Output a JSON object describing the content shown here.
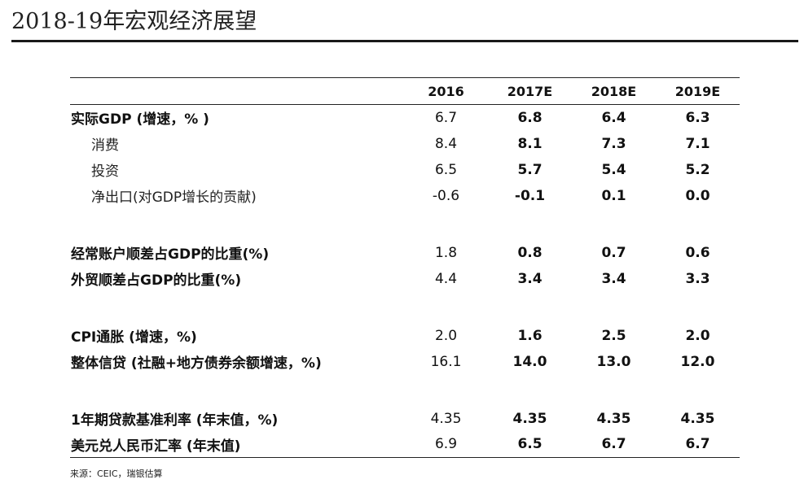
{
  "page": {
    "title": "2018-19年宏观经济展望",
    "source": "来源：CEIC，瑞银估算"
  },
  "table": {
    "headers": [
      "",
      "2016",
      "2017E",
      "2018E",
      "2019E"
    ],
    "rows": [
      {
        "label": "实际GDP (增速，% )",
        "values": [
          "6.7",
          "6.8",
          "6.4",
          "6.3"
        ]
      },
      {
        "label": "消费",
        "values": [
          "8.4",
          "8.1",
          "7.3",
          "7.1"
        ]
      },
      {
        "label": "投资",
        "values": [
          "6.5",
          "5.7",
          "5.4",
          "5.2"
        ]
      },
      {
        "label": "净出口(对GDP增长的贡献)",
        "values": [
          "-0.6",
          "-0.1",
          "0.1",
          "0.0"
        ]
      },
      {
        "label": "经常账户顺差占GDP的比重(%)",
        "values": [
          "1.8",
          "0.8",
          "0.7",
          "0.6"
        ]
      },
      {
        "label": "外贸顺差占GDP的比重(%)",
        "values": [
          "4.4",
          "3.4",
          "3.4",
          "3.3"
        ]
      },
      {
        "label": "CPI通胀 (增速，%)",
        "values": [
          "2.0",
          "1.6",
          "2.5",
          "2.0"
        ]
      },
      {
        "label": "整体信贷 (社融+地方债券余额增速，%)",
        "values": [
          "16.1",
          "14.0",
          "13.0",
          "12.0"
        ]
      },
      {
        "label": "1年期贷款基准利率 (年末值，%)",
        "values": [
          "4.35",
          "4.35",
          "4.35",
          "4.35"
        ]
      },
      {
        "label": "美元兑人民币汇率 (年末值)",
        "values": [
          "6.9",
          "6.5",
          "6.7",
          "6.7"
        ]
      }
    ]
  }
}
